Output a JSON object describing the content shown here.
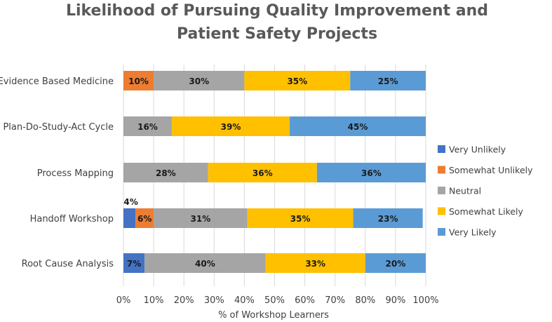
{
  "chart_data": {
    "type": "bar",
    "orientation": "horizontal",
    "stacked": "percent",
    "title_lines": [
      "Likelihood of Pursuing Quality Improvement and",
      "Patient Safety Projects"
    ],
    "xlabel": "% of Workshop Learners",
    "ylabel": "",
    "xlim": [
      0,
      100
    ],
    "x_ticks": [
      "0%",
      "10%",
      "20%",
      "30%",
      "40%",
      "50%",
      "60%",
      "70%",
      "80%",
      "90%",
      "100%"
    ],
    "grid": true,
    "legend_position": "right",
    "categories": [
      "Evidence Based Medicine",
      "Plan-Do-Study-Act Cycle",
      "Process Mapping",
      "Handoff Workshop",
      "Root Cause Analysis"
    ],
    "series": [
      {
        "name": "Very Unlikely",
        "color": "#4472C4",
        "values": [
          0,
          0,
          0,
          4,
          7
        ],
        "labels": [
          "",
          "",
          "",
          "4%",
          "7%"
        ]
      },
      {
        "name": "Somewhat Unlikely",
        "color": "#ED7D31",
        "values": [
          10,
          0,
          0,
          6,
          0
        ],
        "labels": [
          "10%",
          "",
          "",
          "6%",
          ""
        ]
      },
      {
        "name": "Neutral",
        "color": "#A5A5A5",
        "values": [
          30,
          16,
          28,
          31,
          40
        ],
        "labels": [
          "30%",
          "16%",
          "28%",
          "31%",
          "40%"
        ]
      },
      {
        "name": "Somewhat Likely",
        "color": "#FFC000",
        "values": [
          35,
          39,
          36,
          35,
          33
        ],
        "labels": [
          "35%",
          "39%",
          "36%",
          "35%",
          "33%"
        ]
      },
      {
        "name": "Very Likely",
        "color": "#5B9BD5",
        "values": [
          25,
          45,
          36,
          23,
          20
        ],
        "labels": [
          "25%",
          "45%",
          "36%",
          "23%",
          "20%"
        ]
      }
    ]
  }
}
